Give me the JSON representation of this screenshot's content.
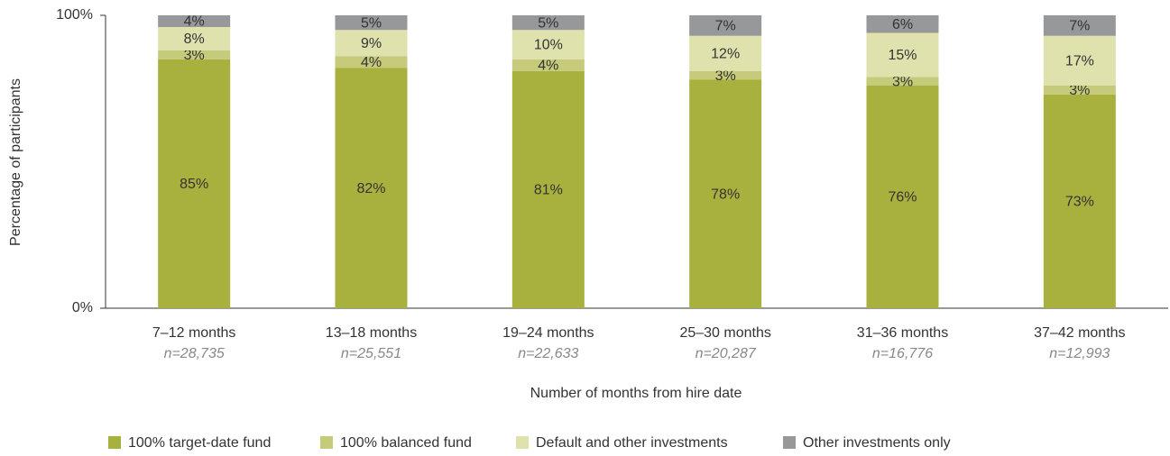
{
  "chart_data": {
    "type": "stacked_bar",
    "y_label": "Percentage of participants",
    "x_label": "Number of months from hire date",
    "categories": [
      "7–12 months",
      "13–18 months",
      "19–24 months",
      "25–30 months",
      "31–36 months",
      "37–42 months"
    ],
    "category_notes": [
      "n=28,735",
      "n=25,551",
      "n=22,633",
      "n=20,287",
      "n=16,776",
      "n=12,993"
    ],
    "series": [
      {
        "name": "100% target-date fund",
        "color": "#a8b03e",
        "values": [
          85,
          82,
          81,
          78,
          76,
          73
        ],
        "value_labels": [
          "85%",
          "82%",
          "81%",
          "78%",
          "76%",
          "73%"
        ]
      },
      {
        "name": "100% balanced fund",
        "color": "#c5cb7a",
        "values": [
          3,
          4,
          4,
          3,
          3,
          3
        ],
        "value_labels": [
          "3%",
          "4%",
          "4%",
          "3%",
          "3%",
          "3%"
        ]
      },
      {
        "name": "Default and other investments",
        "color": "#dfe2ad",
        "values": [
          8,
          9,
          10,
          12,
          15,
          17
        ],
        "value_labels": [
          "8%",
          "9%",
          "10%",
          "12%",
          "15%",
          "17%"
        ]
      },
      {
        "name": "Other investments only",
        "color": "#96989a",
        "values": [
          4,
          5,
          5,
          7,
          6,
          7
        ],
        "value_labels": [
          "4%",
          "5%",
          "5%",
          "7%",
          "6%",
          "7%"
        ]
      }
    ],
    "ylim": [
      0,
      100
    ],
    "yticks": [
      {
        "value": 0,
        "label": "0%"
      },
      {
        "value": 100,
        "label": "100%"
      }
    ],
    "legend": "bottom"
  }
}
